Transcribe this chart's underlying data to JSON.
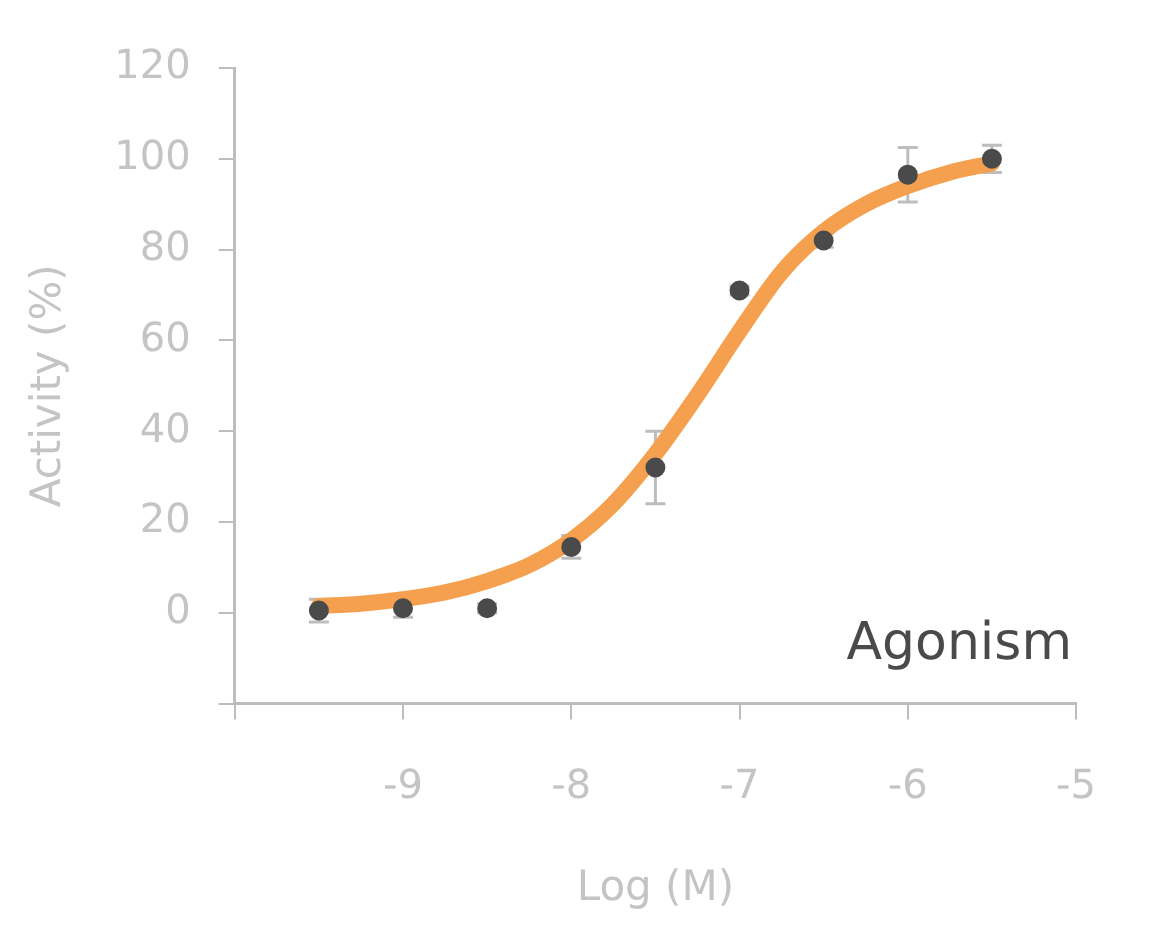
{
  "chart_data": {
    "type": "scatter",
    "xlabel": "Log (M)",
    "ylabel": "Activity (%)",
    "xlim": [
      -10,
      -5
    ],
    "xticks": [
      {
        "value": -10,
        "label": null
      },
      -9,
      -8,
      -7,
      -6,
      -5
    ],
    "ylim": [
      -20,
      120
    ],
    "yticks": [
      {
        "value": -20,
        "label": null
      },
      0,
      20,
      40,
      60,
      80,
      100,
      120
    ],
    "grid": false,
    "legend": false,
    "annotations": [
      "Agonism"
    ],
    "series": [
      {
        "type": "line",
        "color": "#f5a04f",
        "line_style": "solid",
        "marker": "none",
        "x": [
          -9.5,
          -9.25,
          -9,
          -8.75,
          -8.5,
          -8.25,
          -8,
          -7.75,
          -7.5,
          -7.25,
          -7,
          -6.75,
          -6.5,
          -6.25,
          -6,
          -5.75,
          -5.5
        ],
        "values": [
          1.5,
          2,
          3,
          4.5,
          7,
          10.5,
          16,
          24,
          35,
          48,
          62,
          75,
          84,
          90,
          94,
          97,
          99
        ]
      },
      {
        "type": "scatter",
        "color": "#4a4a4a",
        "marker": "circle",
        "x": [
          -9.5,
          -9,
          -8.5,
          -8,
          -7.5,
          -7,
          -6.5,
          -6,
          -5.5
        ],
        "values": [
          0.5,
          1,
          1,
          14.5,
          32,
          71,
          82,
          96.5,
          100
        ],
        "errors": [
          2.5,
          2,
          1,
          2.5,
          8,
          1,
          1.5,
          6,
          3
        ]
      }
    ]
  }
}
